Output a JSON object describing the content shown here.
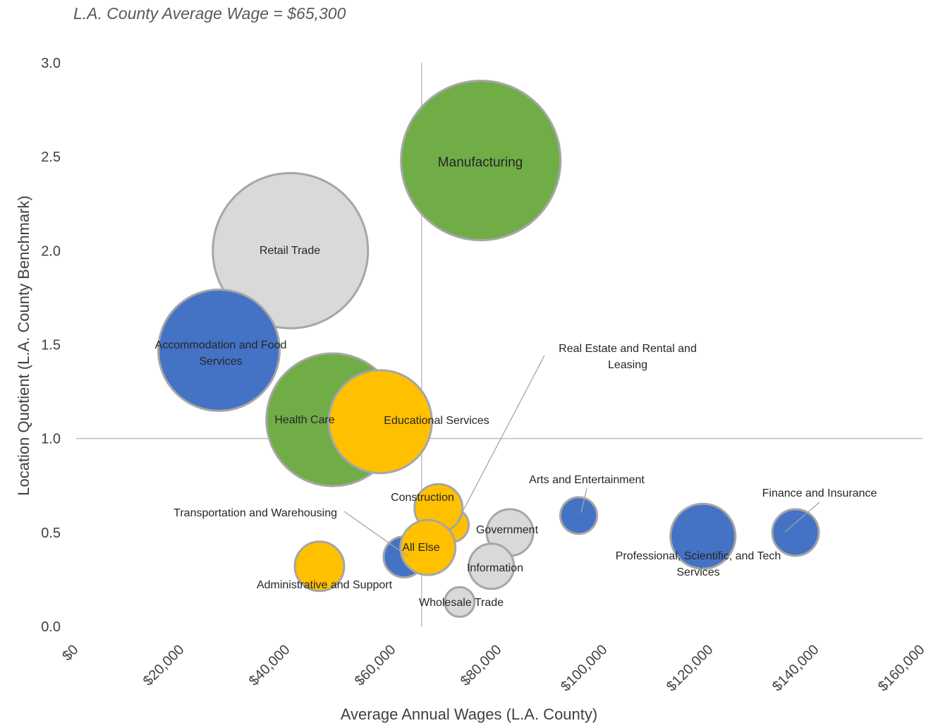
{
  "subtitle": "L.A. County Average Wage = $65,300",
  "chart_data": {
    "type": "bubble",
    "xlabel": "Average Annual Wages (L.A. County)",
    "ylabel": "Location Quotient (L.A. County Benchmark)",
    "xlim": [
      0,
      160000
    ],
    "ylim": [
      0,
      3.0
    ],
    "x_ticks": [
      "$0",
      "$20,000",
      "$40,000",
      "$60,000",
      "$80,000",
      "$100,000",
      "$120,000",
      "$140,000",
      "$160,000"
    ],
    "y_ticks": [
      "0.0",
      "0.5",
      "1.0",
      "1.5",
      "2.0",
      "2.5",
      "3.0"
    ],
    "reference_lines": {
      "x": 65300,
      "y": 1.0
    },
    "colors": {
      "green": "#70ad47",
      "gray": "#d9d9d9",
      "blue": "#4472c4",
      "yellow": "#ffc000",
      "outline": "#a6a6a6"
    },
    "points": [
      {
        "name": "Manufacturing",
        "x": 76500,
        "y": 2.48,
        "size": 113,
        "color": "green"
      },
      {
        "name": "Retail Trade",
        "x": 40500,
        "y": 2.0,
        "size": 110,
        "color": "gray"
      },
      {
        "name": "Accommodation and Food Services",
        "x": 27000,
        "y": 1.47,
        "size": 86,
        "color": "blue"
      },
      {
        "name": "Health Care",
        "x": 48500,
        "y": 1.1,
        "size": 94,
        "color": "green"
      },
      {
        "name": "Educational Services",
        "x": 57500,
        "y": 1.09,
        "size": 73,
        "color": "yellow"
      },
      {
        "name": "Real Estate and Rental and Leasing",
        "x": 71000,
        "y": 0.54,
        "size": 24,
        "color": "yellow"
      },
      {
        "name": "Construction",
        "x": 68500,
        "y": 0.63,
        "size": 34,
        "color": "yellow"
      },
      {
        "name": "Transportation and Warehousing",
        "x": 62000,
        "y": 0.37,
        "size": 29,
        "color": "blue"
      },
      {
        "name": "All Else",
        "x": 66500,
        "y": 0.42,
        "size": 39,
        "color": "yellow"
      },
      {
        "name": "Administrative and Support",
        "x": 46000,
        "y": 0.32,
        "size": 35,
        "color": "yellow"
      },
      {
        "name": "Government",
        "x": 82000,
        "y": 0.5,
        "size": 33,
        "color": "gray"
      },
      {
        "name": "Information",
        "x": 78500,
        "y": 0.32,
        "size": 32,
        "color": "gray"
      },
      {
        "name": "Wholesale Trade",
        "x": 72500,
        "y": 0.13,
        "size": 21,
        "color": "gray"
      },
      {
        "name": "Arts and Entertainment",
        "x": 95000,
        "y": 0.59,
        "size": 26,
        "color": "blue"
      },
      {
        "name": "Professional, Scientific, and Tech Services",
        "x": 118500,
        "y": 0.48,
        "size": 46,
        "color": "blue"
      },
      {
        "name": "Finance and Insurance",
        "x": 136000,
        "y": 0.5,
        "size": 33,
        "color": "blue"
      }
    ],
    "labels": [
      {
        "lines": [
          "Manufacturing"
        ],
        "pt": 0,
        "fs": 19,
        "leader": false
      },
      {
        "lines": [
          "Retail Trade"
        ],
        "pt": 1,
        "fs": 16,
        "leader": false
      },
      {
        "lines": [
          "Accommodation and Food",
          "Services"
        ],
        "pt": 2,
        "fs": 16,
        "leader": false
      },
      {
        "lines": [
          "Health Care"
        ],
        "pt": 3,
        "fs": 16,
        "leader": false
      },
      {
        "lines": [
          "Educational Services"
        ],
        "pt": 4,
        "fs": 16,
        "leader": false
      },
      {
        "lines": [
          "Real Estate and Rental and",
          "Leasing"
        ],
        "pt": 5,
        "fs": 16,
        "leader": true
      },
      {
        "lines": [
          "Construction"
        ],
        "pt": 6,
        "fs": 16,
        "leader": false
      },
      {
        "lines": [
          "Transportation and Warehousing"
        ],
        "pt": 7,
        "fs": 16,
        "leader": true
      },
      {
        "lines": [
          "All Else"
        ],
        "pt": 8,
        "fs": 16,
        "leader": false
      },
      {
        "lines": [
          "Administrative and Support"
        ],
        "pt": 9,
        "fs": 16,
        "leader": false
      },
      {
        "lines": [
          "Government"
        ],
        "pt": 10,
        "fs": 16,
        "leader": false
      },
      {
        "lines": [
          "Information"
        ],
        "pt": 11,
        "fs": 16,
        "leader": false
      },
      {
        "lines": [
          "Wholesale Trade"
        ],
        "pt": 12,
        "fs": 16,
        "leader": false
      },
      {
        "lines": [
          "Arts and Entertainment"
        ],
        "pt": 13,
        "fs": 16,
        "leader": true
      },
      {
        "lines": [
          "Professional, Scientific, and Tech",
          "Services"
        ],
        "pt": 14,
        "fs": 16,
        "leader": false
      },
      {
        "lines": [
          "Finance and Insurance"
        ],
        "pt": 15,
        "fs": 16,
        "leader": true
      }
    ]
  }
}
